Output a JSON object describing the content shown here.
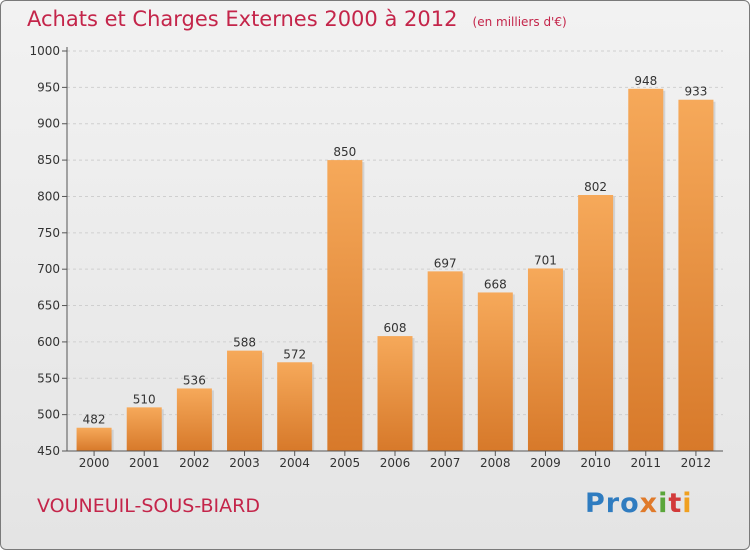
{
  "title": "Achats et Charges Externes 2000 à 2012",
  "unit_label": "(en milliers d'€)",
  "commune": "VOUNEUIL-SOUS-BIARD",
  "logo": {
    "text": "Proxiti",
    "letters": [
      "Pro",
      "x",
      "i",
      "t",
      "i"
    ]
  },
  "colors": {
    "title": "#c4254a",
    "bar_light": "#f6a95a",
    "bar_dark": "#d7792a",
    "grid": "#cfcfcf",
    "axis": "#555555"
  },
  "chart_data": {
    "type": "bar",
    "categories": [
      "2000",
      "2001",
      "2002",
      "2003",
      "2004",
      "2005",
      "2006",
      "2007",
      "2008",
      "2009",
      "2010",
      "2011",
      "2012"
    ],
    "values": [
      482,
      510,
      536,
      588,
      572,
      850,
      608,
      697,
      668,
      701,
      802,
      948,
      933
    ],
    "value_labels": [
      "482",
      "510",
      "536",
      "588",
      "572",
      "850",
      "608",
      "697",
      "668",
      "701",
      "802",
      "948",
      "933"
    ],
    "ylim": [
      450,
      1000
    ],
    "yticks": [
      450,
      500,
      550,
      600,
      650,
      700,
      750,
      800,
      850,
      900,
      950,
      1000
    ],
    "ytick_labels": [
      "450",
      "500",
      "550",
      "600",
      "650",
      "700",
      "750",
      "800",
      "850",
      "900",
      "950",
      "1000"
    ],
    "grid": "horizontal dashed",
    "legend": "none"
  }
}
